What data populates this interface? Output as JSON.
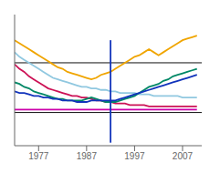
{
  "chart_data": {
    "type": "line",
    "grid": false,
    "tick_labels": "x",
    "xlim": [
      1972,
      2011
    ],
    "xticks": [
      1977,
      1987,
      1997,
      2007
    ],
    "ylim": [
      0.08,
      0.95
    ],
    "x": [
      1972,
      1973,
      1974,
      1975,
      1976,
      1977,
      1978,
      1979,
      1980,
      1981,
      1982,
      1983,
      1984,
      1985,
      1986,
      1987,
      1988,
      1989,
      1990,
      1991,
      1992,
      1993,
      1994,
      1995,
      1996,
      1997,
      1998,
      1999,
      2000,
      2001,
      2002,
      2003,
      2004,
      2005,
      2006,
      2007,
      2008,
      2009,
      2010
    ],
    "reference_lines": [
      {
        "y": 0.63,
        "color": "#111111"
      },
      {
        "y": 0.3,
        "color": "#111111"
      }
    ],
    "series": [
      {
        "color": "#f0a500",
        "values": [
          0.78,
          0.76,
          0.74,
          0.72,
          0.7,
          0.68,
          0.66,
          0.64,
          0.62,
          0.6,
          0.59,
          0.57,
          0.56,
          0.55,
          0.54,
          0.53,
          0.52,
          0.53,
          0.55,
          0.56,
          0.57,
          0.59,
          0.61,
          0.63,
          0.65,
          0.67,
          0.68,
          0.7,
          0.72,
          0.7,
          0.68,
          0.7,
          0.72,
          0.74,
          0.76,
          0.78,
          0.79,
          0.8,
          0.81
        ]
      },
      {
        "color": "#90c8e0",
        "values": [
          0.7,
          0.67,
          0.65,
          0.63,
          0.61,
          0.59,
          0.57,
          0.55,
          0.53,
          0.52,
          0.51,
          0.5,
          0.49,
          0.48,
          0.47,
          0.47,
          0.46,
          0.46,
          0.45,
          0.45,
          0.44,
          0.44,
          0.43,
          0.43,
          0.43,
          0.43,
          0.42,
          0.42,
          0.42,
          0.41,
          0.41,
          0.41,
          0.41,
          0.41,
          0.41,
          0.4,
          0.4,
          0.4,
          0.4
        ]
      },
      {
        "color": "#cc1155",
        "values": [
          0.62,
          0.59,
          0.57,
          0.54,
          0.52,
          0.5,
          0.48,
          0.46,
          0.45,
          0.44,
          0.43,
          0.42,
          0.41,
          0.41,
          0.4,
          0.4,
          0.39,
          0.38,
          0.38,
          0.37,
          0.37,
          0.36,
          0.36,
          0.36,
          0.35,
          0.35,
          0.35,
          0.35,
          0.34,
          0.34,
          0.34,
          0.34,
          0.34,
          0.34,
          0.34,
          0.34,
          0.34,
          0.34,
          0.34
        ]
      },
      {
        "color": "#cc00aa",
        "values": [
          0.32,
          0.32,
          0.32,
          0.32,
          0.32,
          0.32,
          0.32,
          0.32,
          0.32,
          0.32,
          0.32,
          0.32,
          0.32,
          0.32,
          0.32,
          0.32,
          0.32,
          0.32,
          0.32,
          0.32,
          0.32,
          0.32,
          0.32,
          0.32,
          0.32,
          0.32,
          0.32,
          0.32,
          0.32,
          0.32,
          0.32,
          0.32,
          0.32,
          0.32,
          0.32,
          0.32,
          0.32,
          0.32,
          0.32
        ]
      },
      {
        "color": "#008866",
        "values": [
          0.5,
          0.49,
          0.47,
          0.46,
          0.44,
          0.43,
          0.42,
          0.41,
          0.4,
          0.39,
          0.39,
          0.38,
          0.38,
          0.38,
          0.38,
          0.39,
          0.4,
          0.39,
          0.38,
          0.37,
          0.37,
          0.37,
          0.38,
          0.39,
          0.4,
          0.41,
          0.43,
          0.45,
          0.47,
          0.48,
          0.49,
          0.51,
          0.52,
          0.54,
          0.55,
          0.56,
          0.57,
          0.58,
          0.59
        ]
      },
      {
        "color": "#1133bb",
        "values": [
          0.44,
          0.43,
          0.43,
          0.42,
          0.41,
          0.41,
          0.4,
          0.4,
          0.39,
          0.39,
          0.38,
          0.38,
          0.38,
          0.37,
          0.37,
          0.37,
          0.38,
          0.38,
          0.38,
          0.38,
          0.38,
          0.38,
          0.39,
          0.4,
          0.41,
          0.42,
          0.43,
          0.44,
          0.45,
          0.46,
          0.47,
          0.48,
          0.49,
          0.5,
          0.51,
          0.52,
          0.53,
          0.54,
          0.55
        ]
      },
      {
        "color": "#1133bb",
        "x": [
          1992,
          1992
        ],
        "values": [
          0.1,
          0.78
        ]
      }
    ]
  }
}
